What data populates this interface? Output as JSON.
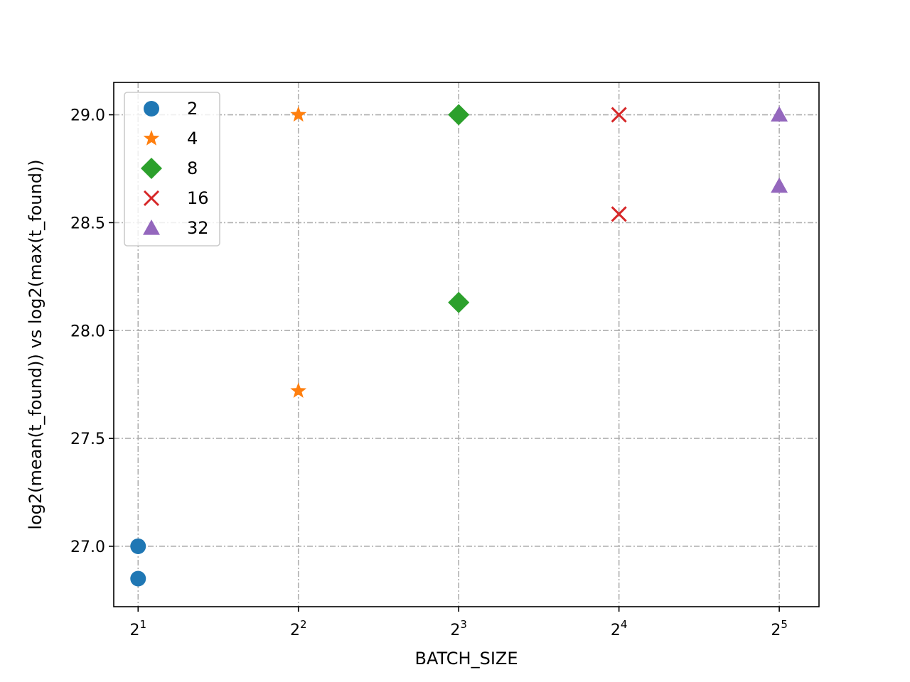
{
  "chart_data": {
    "type": "scatter",
    "xlabel": "BATCH_SIZE",
    "ylabel": "log2(mean(t_found)) vs log2(max(t_found))",
    "x_scale": "log2",
    "xlim": [
      1.8,
      38
    ],
    "ylim": [
      26.72,
      29.15
    ],
    "x_ticks": [
      2,
      4,
      8,
      16,
      32
    ],
    "x_tick_labels": [
      {
        "base": "2",
        "exp": "1"
      },
      {
        "base": "2",
        "exp": "2"
      },
      {
        "base": "2",
        "exp": "3"
      },
      {
        "base": "2",
        "exp": "4"
      },
      {
        "base": "2",
        "exp": "5"
      }
    ],
    "y_ticks": [
      27.0,
      27.5,
      28.0,
      28.5,
      29.0
    ],
    "y_tick_labels": [
      "27.0",
      "27.5",
      "28.0",
      "28.5",
      "29.0"
    ],
    "grid": true,
    "legend_position": "top-left",
    "series": [
      {
        "name": "2",
        "marker": "circle",
        "color": "#1f77b4",
        "points": [
          {
            "x": 2,
            "y": 27.0
          },
          {
            "x": 2,
            "y": 26.85
          }
        ]
      },
      {
        "name": "4",
        "marker": "star",
        "color": "#ff7f0e",
        "points": [
          {
            "x": 4,
            "y": 29.0
          },
          {
            "x": 4,
            "y": 27.72
          }
        ]
      },
      {
        "name": "8",
        "marker": "diamond",
        "color": "#2ca02c",
        "points": [
          {
            "x": 8,
            "y": 29.0
          },
          {
            "x": 8,
            "y": 28.13
          }
        ]
      },
      {
        "name": "16",
        "marker": "x",
        "color": "#d62728",
        "points": [
          {
            "x": 16,
            "y": 29.0
          },
          {
            "x": 16,
            "y": 28.54
          }
        ]
      },
      {
        "name": "32",
        "marker": "triangle",
        "color": "#9467bd",
        "points": [
          {
            "x": 32,
            "y": 29.0
          },
          {
            "x": 32,
            "y": 28.67
          }
        ]
      }
    ]
  }
}
